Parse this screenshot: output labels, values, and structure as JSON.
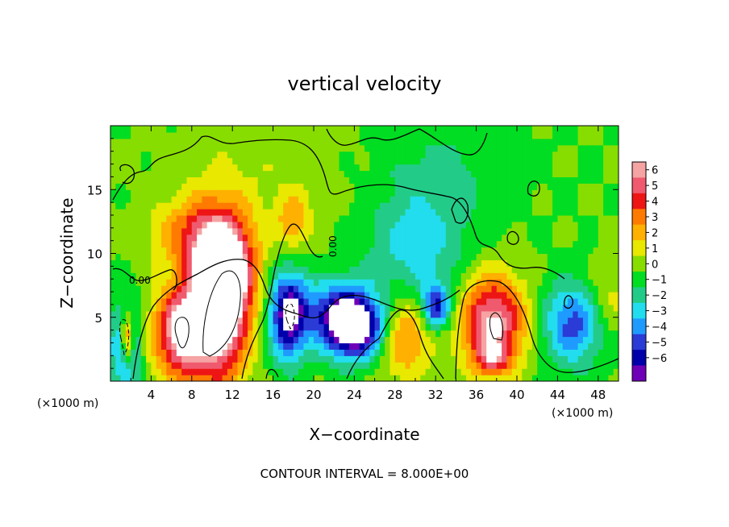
{
  "chart_data": {
    "type": "heatmap",
    "title": "vertical velocity",
    "xlabel": "X−coordinate",
    "ylabel": "Z−coordinate",
    "x_unit": "(×1000 m)",
    "y_unit": "(×1000 m)",
    "xlim": [
      0,
      50
    ],
    "ylim": [
      0,
      20
    ],
    "x_ticks": [
      4,
      8,
      12,
      16,
      20,
      24,
      28,
      32,
      36,
      40,
      44,
      48
    ],
    "x_tick_labels": [
      "4",
      "8",
      "12",
      "16",
      "20",
      "24",
      "28",
      "32",
      "36",
      "40",
      "44",
      "48"
    ],
    "y_ticks": [
      5,
      10,
      15
    ],
    "y_tick_labels": [
      "5",
      "10",
      "15"
    ],
    "colorbar": {
      "levels": [
        6,
        5,
        4,
        3,
        2,
        1,
        0,
        -1,
        -2,
        -3,
        -4,
        -5,
        -6
      ],
      "labels": [
        "6",
        "5",
        "4",
        "3",
        "2",
        "1",
        "0",
        "−1",
        "−2",
        "−3",
        "−4",
        "−5",
        "−6"
      ],
      "colors": [
        "#f5a3a3",
        "#f05a6e",
        "#ee1515",
        "#ff7a00",
        "#ffb000",
        "#e8e800",
        "#88dd00",
        "#00dd22",
        "#22cc88",
        "#22ddee",
        "#1f9bff",
        "#2a3bd6",
        "#0000aa",
        "#6e00b8"
      ]
    },
    "contour_label": "0.00",
    "contour_interval_text": "CONTOUR INTERVAL = 8.000E+00",
    "features": [
      {
        "x": 1.5,
        "z": 2.8,
        "sx": 0.9,
        "sz": 2.2,
        "w": -6
      },
      {
        "x": 1.6,
        "z": 3.3,
        "sx": 0.5,
        "sz": 1.4,
        "w": 8
      },
      {
        "x": 6.8,
        "z": 3.8,
        "sx": 1.8,
        "sz": 2.4,
        "w": 7
      },
      {
        "x": 10.6,
        "z": 6.0,
        "sx": 2.0,
        "sz": 4.2,
        "w": 9
      },
      {
        "x": 11.5,
        "z": 8.8,
        "sx": 2.0,
        "sz": 2.8,
        "w": 5
      },
      {
        "x": 7.8,
        "z": 11.5,
        "sx": 2.6,
        "sz": 2.0,
        "w": 3
      },
      {
        "x": 18.0,
        "z": 12.5,
        "sx": 1.2,
        "sz": 1.6,
        "w": 2.5
      },
      {
        "x": 17.5,
        "z": 5.2,
        "sx": 1.3,
        "sz": 2.4,
        "w": -7
      },
      {
        "x": 24.0,
        "z": 4.0,
        "sx": 2.2,
        "sz": 1.6,
        "w": -8
      },
      {
        "x": 22.5,
        "z": 5.8,
        "sx": 2.6,
        "sz": 1.6,
        "w": -4
      },
      {
        "x": 28.8,
        "z": 3.8,
        "sx": 2.0,
        "sz": 2.4,
        "w": 4
      },
      {
        "x": 30.0,
        "z": 10.0,
        "sx": 3.5,
        "sz": 3.5,
        "w": -2.5
      },
      {
        "x": 32.0,
        "z": 5.8,
        "sx": 1.0,
        "sz": 1.2,
        "w": -5
      },
      {
        "x": 37.6,
        "z": 4.6,
        "sx": 2.2,
        "sz": 2.6,
        "w": 7
      },
      {
        "x": 37.6,
        "z": 1.8,
        "sx": 1.2,
        "sz": 0.8,
        "w": 3
      },
      {
        "x": 45.5,
        "z": 4.5,
        "sx": 2.0,
        "sz": 2.2,
        "w": -4.5
      },
      {
        "x": 49.0,
        "z": 6.5,
        "sx": 1.5,
        "sz": 2.0,
        "w": 1.5
      },
      {
        "x": 33.0,
        "z": 16.5,
        "sx": 4.0,
        "sz": 3.0,
        "w": -1.2
      },
      {
        "x": 14.0,
        "z": 16.0,
        "sx": 6.0,
        "sz": 4.0,
        "w": 0.8
      }
    ]
  }
}
